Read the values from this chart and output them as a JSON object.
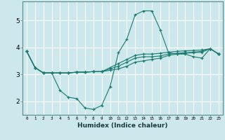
{
  "xlabel": "Humidex (Indice chaleur)",
  "bg_color": "#cce8ec",
  "line_color": "#1a7a6e",
  "grid_color": "#b0d4d8",
  "x_ticks": [
    0,
    1,
    2,
    3,
    4,
    5,
    6,
    7,
    8,
    9,
    10,
    11,
    12,
    13,
    14,
    15,
    16,
    17,
    18,
    19,
    20,
    21,
    22,
    23
  ],
  "y_ticks": [
    2,
    3,
    4,
    5
  ],
  "ylim": [
    1.5,
    5.7
  ],
  "xlim": [
    -0.5,
    23.5
  ],
  "lines": [
    {
      "x": [
        0,
        1,
        2,
        3,
        4,
        5,
        6,
        7,
        8,
        9,
        10,
        11,
        12,
        13,
        14,
        15,
        16,
        17,
        18,
        19,
        20,
        21,
        22,
        23
      ],
      "y": [
        3.85,
        3.25,
        3.05,
        3.05,
        2.4,
        2.15,
        2.1,
        1.75,
        1.7,
        1.85,
        2.55,
        3.8,
        4.3,
        5.2,
        5.35,
        5.35,
        4.65,
        3.8,
        3.75,
        3.75,
        3.65,
        3.6,
        3.95,
        3.75
      ]
    },
    {
      "x": [
        0,
        1,
        2,
        3,
        4,
        5,
        6,
        7,
        8,
        9,
        10,
        11,
        12,
        13,
        14,
        15,
        16,
        17,
        18,
        19,
        20,
        21,
        22,
        23
      ],
      "y": [
        3.85,
        3.25,
        3.05,
        3.05,
        3.05,
        3.05,
        3.08,
        3.08,
        3.1,
        3.1,
        3.15,
        3.2,
        3.3,
        3.45,
        3.5,
        3.55,
        3.6,
        3.7,
        3.75,
        3.78,
        3.8,
        3.82,
        3.95,
        3.75
      ]
    },
    {
      "x": [
        0,
        1,
        2,
        3,
        4,
        5,
        6,
        7,
        8,
        9,
        10,
        11,
        12,
        13,
        14,
        15,
        16,
        17,
        18,
        19,
        20,
        21,
        22,
        23
      ],
      "y": [
        3.85,
        3.25,
        3.05,
        3.05,
        3.05,
        3.05,
        3.08,
        3.08,
        3.1,
        3.1,
        3.2,
        3.3,
        3.45,
        3.6,
        3.65,
        3.65,
        3.68,
        3.75,
        3.78,
        3.8,
        3.82,
        3.85,
        3.95,
        3.75
      ]
    },
    {
      "x": [
        0,
        1,
        2,
        3,
        4,
        5,
        6,
        7,
        8,
        9,
        10,
        11,
        12,
        13,
        14,
        15,
        16,
        17,
        18,
        19,
        20,
        21,
        22,
        23
      ],
      "y": [
        3.85,
        3.25,
        3.05,
        3.05,
        3.05,
        3.05,
        3.08,
        3.08,
        3.1,
        3.1,
        3.25,
        3.4,
        3.55,
        3.7,
        3.75,
        3.75,
        3.78,
        3.82,
        3.85,
        3.87,
        3.88,
        3.9,
        3.95,
        3.75
      ]
    }
  ]
}
